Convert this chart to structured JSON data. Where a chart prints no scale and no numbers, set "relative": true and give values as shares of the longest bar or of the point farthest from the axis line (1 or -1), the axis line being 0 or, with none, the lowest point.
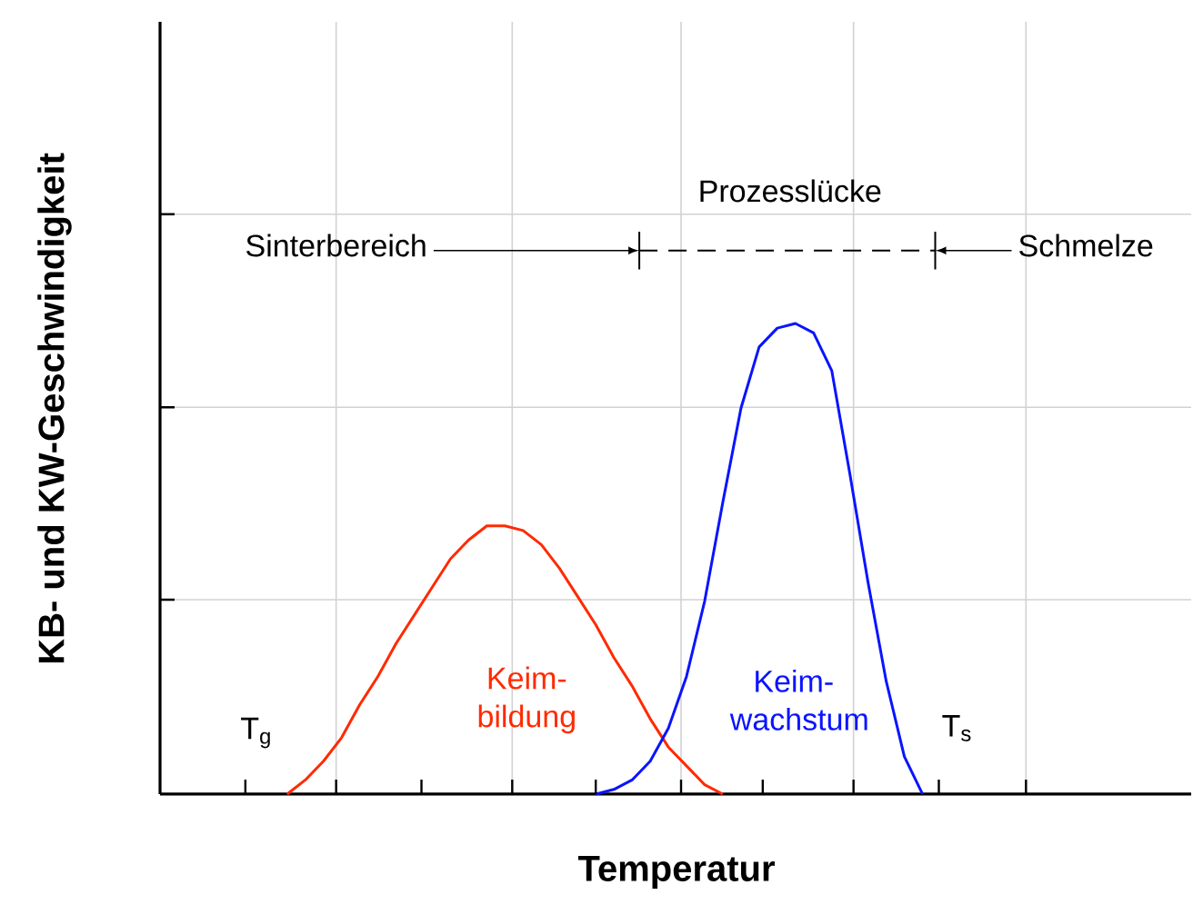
{
  "chart_data": {
    "type": "line",
    "relative": true,
    "grid": true,
    "xlabel": "Temperatur",
    "ylabel": "KB- und KW-Geschwindigkeit",
    "annotations": [
      "Sinterbereich",
      "Prozesslücke",
      "Schmelze",
      "T$_{g}$",
      "T$_{s}$"
    ],
    "categories": [
      null,
      null,
      null,
      null,
      null,
      null,
      null,
      null,
      null,
      null,
      null,
      null,
      null,
      null,
      null,
      null,
      null,
      null,
      null,
      null,
      null,
      null,
      null,
      null,
      null,
      null,
      null,
      null,
      null,
      null,
      null,
      null,
      null,
      null,
      null,
      null,
      null,
      null,
      null,
      null,
      null,
      null,
      null,
      null,
      null,
      null,
      null,
      null,
      null,
      null,
      null,
      null,
      null,
      null,
      null,
      null,
      null
    ],
    "series": [
      {
        "name": "Keim- bildung",
        "color": "#ff2a00",
        "values": [
          null,
          null,
          null,
          null,
          null,
          null,
          null,
          0.0,
          0.03,
          0.07,
          0.12,
          0.19,
          0.25,
          0.32,
          0.38,
          0.44,
          0.5,
          0.54,
          0.57,
          0.57,
          0.56,
          0.53,
          0.48,
          0.42,
          0.36,
          0.29,
          0.23,
          0.16,
          0.1,
          0.06,
          0.02,
          0.0,
          null,
          null,
          null,
          null,
          null,
          null,
          null,
          null,
          null,
          null,
          null,
          null,
          null,
          null,
          null,
          null,
          null,
          null,
          null,
          null,
          null,
          null,
          null,
          null,
          null
        ]
      },
      {
        "name": "Keim- wachstum",
        "color": "#0a14ff",
        "values": [
          null,
          null,
          null,
          null,
          null,
          null,
          null,
          null,
          null,
          null,
          null,
          null,
          null,
          null,
          null,
          null,
          null,
          null,
          null,
          null,
          null,
          null,
          null,
          null,
          0.0,
          0.01,
          0.03,
          0.07,
          0.14,
          0.25,
          0.41,
          0.62,
          0.82,
          0.95,
          0.99,
          1.0,
          0.98,
          0.9,
          0.68,
          0.45,
          0.24,
          0.08,
          0.0,
          null,
          null,
          null,
          null,
          null,
          null,
          null,
          null,
          null,
          null,
          null,
          null,
          null,
          null
        ]
      }
    ]
  }
}
